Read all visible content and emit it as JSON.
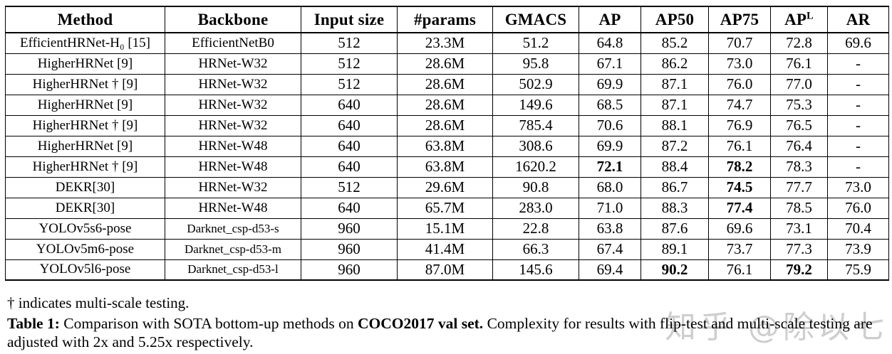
{
  "table": {
    "columns": [
      "Method",
      "Backbone",
      "Input size",
      "#params",
      "GMACS",
      "AP",
      "AP50",
      "AP75",
      {
        "label": "AP",
        "sup": "L"
      },
      "AR"
    ],
    "column_keys": [
      "method",
      "backbone",
      "input-size",
      "params",
      "gmacs",
      "ap",
      "ap50",
      "ap75",
      "ap-l",
      "ar"
    ],
    "rows": [
      {
        "cells": [
          "EfficientHRNet-H₀ [15]",
          "EfficientNetB0",
          "512",
          "23.3M",
          "51.2",
          "64.8",
          "85.2",
          "70.7",
          "72.8",
          "69.6"
        ],
        "bold": [],
        "small": []
      },
      {
        "cells": [
          "HigherHRNet [9]",
          "HRNet-W32",
          "512",
          "28.6M",
          "95.8",
          "67.1",
          "86.2",
          "73.0",
          "76.1",
          "-"
        ],
        "bold": [],
        "small": []
      },
      {
        "cells": [
          "HigherHRNet † [9]",
          "HRNet-W32",
          "512",
          "28.6M",
          "502.9",
          "69.9",
          "87.1",
          "76.0",
          "77.0",
          "-"
        ],
        "bold": [],
        "small": []
      },
      {
        "cells": [
          "HigherHRNet [9]",
          "HRNet-W32",
          "640",
          "28.6M",
          "149.6",
          "68.5",
          "87.1",
          "74.7",
          "75.3",
          "-"
        ],
        "bold": [],
        "small": []
      },
      {
        "cells": [
          "HigherHRNet † [9]",
          "HRNet-W32",
          "640",
          "28.6M",
          "785.4",
          "70.6",
          "88.1",
          "76.9",
          "76.5",
          "-"
        ],
        "bold": [],
        "small": []
      },
      {
        "cells": [
          "HigherHRNet [9]",
          "HRNet-W48",
          "640",
          "63.8M",
          "308.6",
          "69.9",
          "87.2",
          "76.1",
          "76.4",
          "-"
        ],
        "bold": [],
        "small": []
      },
      {
        "cells": [
          "HigherHRNet † [9]",
          "HRNet-W48",
          "640",
          "63.8M",
          "1620.2",
          "72.1",
          "88.4",
          "78.2",
          "78.3",
          "-"
        ],
        "bold": [
          5,
          7
        ],
        "small": []
      },
      {
        "cells": [
          "DEKR[30]",
          "HRNet-W32",
          "512",
          "29.6M",
          "90.8",
          "68.0",
          "86.7",
          "74.5",
          "77.7",
          "73.0"
        ],
        "bold": [
          7
        ],
        "small": []
      },
      {
        "cells": [
          "DEKR[30]",
          "HRNet-W48",
          "640",
          "65.7M",
          "283.0",
          "71.0",
          "88.3",
          "77.4",
          "78.5",
          "76.0"
        ],
        "bold": [
          7
        ],
        "small": []
      },
      {
        "cells": [
          "YOLOv5s6-pose",
          "Darknet_csp-d53-s",
          "960",
          "15.1M",
          "22.8",
          "63.8",
          "87.6",
          "69.6",
          "73.1",
          "70.4"
        ],
        "bold": [],
        "small": [
          1
        ]
      },
      {
        "cells": [
          "YOLOv5m6-pose",
          "Darknet_csp-d53-m",
          "960",
          "41.4M",
          "66.3",
          "67.4",
          "89.1",
          "73.7",
          "77.3",
          "73.9"
        ],
        "bold": [],
        "small": [
          1
        ]
      },
      {
        "cells": [
          "YOLOv5l6-pose",
          "Darknet_csp-d53-l",
          "960",
          "87.0M",
          "145.6",
          "69.4",
          "90.2",
          "76.1",
          "79.2",
          "75.9"
        ],
        "bold": [
          6,
          8
        ],
        "small": [
          1
        ]
      }
    ]
  },
  "footnote": "† indicates multi-scale testing.",
  "caption": {
    "label": "Table 1:",
    "text1": " Comparison with SOTA bottom-up methods on ",
    "bold1": "COCO2017 val set.",
    "text2": " Complexity for results with flip-test and multi-scale testing are adjusted with 2x and 5.25x respectively."
  },
  "watermark": "知乎 @除以七",
  "colors": {
    "text": "#000000",
    "border": "#000000",
    "watermark": "#c9c9c9",
    "background": "#ffffff"
  }
}
